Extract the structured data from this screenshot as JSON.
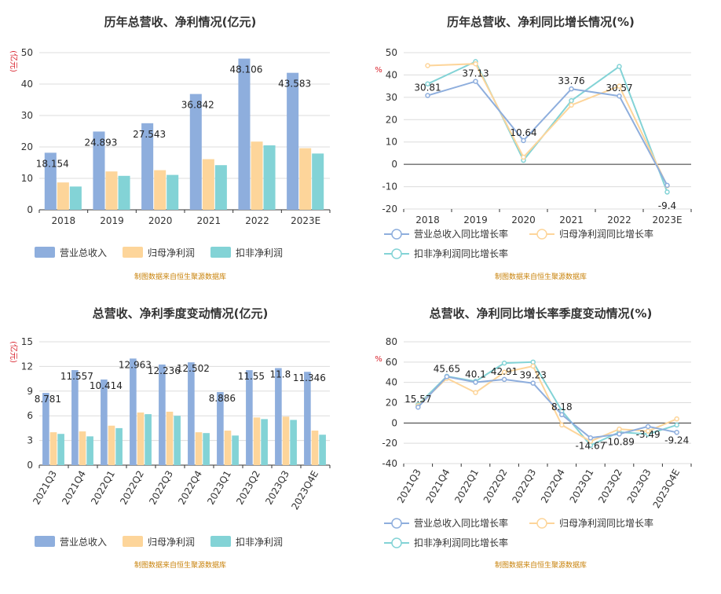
{
  "colors": {
    "revenue": "#8eaedd",
    "net_profit": "#fdd59a",
    "deducted_profit": "#83d3d6"
  },
  "chart_data": [
    {
      "type": "bar",
      "title": "历年总营收、净利情况(亿元)",
      "unit_label": "(亿元)",
      "categories": [
        "2018",
        "2019",
        "2020",
        "2021",
        "2022",
        "2023E"
      ],
      "ylim": [
        0,
        50
      ],
      "yticks": [
        0,
        10,
        20,
        30,
        40,
        50
      ],
      "grid": true,
      "legend": "bottom",
      "series": [
        {
          "name": "营业总收入",
          "values": [
            18.154,
            24.893,
            27.543,
            36.842,
            48.106,
            43.583
          ],
          "labels": [
            "18.154",
            "24.893",
            "27.543",
            "36.842",
            "48.106",
            "43.583"
          ]
        },
        {
          "name": "归母净利润",
          "values": [
            8.7,
            12.2,
            12.6,
            16.1,
            21.7,
            19.6
          ]
        },
        {
          "name": "扣非净利润",
          "values": [
            7.4,
            10.8,
            11.1,
            14.2,
            20.5,
            17.9
          ]
        }
      ],
      "source": "制图数据来自恒生聚源数据库"
    },
    {
      "type": "line",
      "title": "历年总营收、净利同比增长情况(%)",
      "unit_label": "%",
      "categories": [
        "2018",
        "2019",
        "2020",
        "2021",
        "2022",
        "2023E"
      ],
      "ylim": [
        -20,
        50
      ],
      "yticks": [
        -20,
        -10,
        0,
        10,
        20,
        30,
        40,
        50
      ],
      "grid": true,
      "legend": "bottom",
      "series": [
        {
          "name": "营业总收入同比增长率",
          "values": [
            30.81,
            37.13,
            10.64,
            33.76,
            30.57,
            -9.4
          ],
          "labels": [
            "30.81",
            "37.13",
            "10.64",
            "33.76",
            "30.57",
            "-9.4"
          ]
        },
        {
          "name": "归母净利润同比增长率",
          "values": [
            44.2,
            45.0,
            3.2,
            26.5,
            35.0,
            -9.6
          ]
        },
        {
          "name": "扣非净利润同比增长率",
          "values": [
            36.0,
            46.0,
            1.8,
            28.5,
            43.8,
            -12.4
          ]
        }
      ],
      "source": "制图数据来自恒生聚源数据库"
    },
    {
      "type": "bar",
      "title": "总营收、净利季度变动情况(亿元)",
      "unit_label": "(亿元)",
      "categories": [
        "2021Q3",
        "2021Q4",
        "2022Q1",
        "2022Q2",
        "2022Q3",
        "2022Q4",
        "2023Q1",
        "2023Q2",
        "2023Q3",
        "2023Q4E"
      ],
      "ylim": [
        0,
        15
      ],
      "yticks": [
        0,
        3,
        6,
        9,
        12,
        15
      ],
      "grid": true,
      "legend": "bottom",
      "series": [
        {
          "name": "营业总收入",
          "values": [
            8.781,
            11.557,
            10.414,
            12.963,
            12.236,
            12.502,
            8.886,
            11.55,
            11.8,
            11.346
          ],
          "labels": [
            "8.781",
            "11.557",
            "10.414",
            "12.963",
            "12.236",
            "12.502",
            "8.886",
            "11.55",
            "11.8",
            "11.346"
          ]
        },
        {
          "name": "归母净利润",
          "values": [
            4.0,
            4.1,
            4.8,
            6.4,
            6.5,
            4.0,
            4.2,
            5.8,
            5.9,
            4.2
          ]
        },
        {
          "name": "扣非净利润",
          "values": [
            3.8,
            3.5,
            4.5,
            6.2,
            6.0,
            3.9,
            3.6,
            5.6,
            5.5,
            3.7
          ]
        }
      ],
      "source": "制图数据来自恒生聚源数据库"
    },
    {
      "type": "line",
      "title": "总营收、净利同比增长率季度变动情况(%)",
      "unit_label": "%",
      "categories": [
        "2021Q3",
        "2021Q4",
        "2022Q1",
        "2022Q2",
        "2022Q3",
        "2022Q4",
        "2023Q1",
        "2023Q2",
        "2023Q3",
        "2023Q4E"
      ],
      "ylim": [
        -40,
        80
      ],
      "yticks": [
        -40,
        -20,
        0,
        20,
        40,
        60,
        80
      ],
      "grid": true,
      "legend": "bottom",
      "series": [
        {
          "name": "营业总收入同比增长率",
          "values": [
            15.57,
            45.65,
            40.1,
            42.91,
            39.23,
            8.18,
            -14.67,
            -10.89,
            -3.49,
            -9.24
          ],
          "labels": [
            "15.57",
            "45.65",
            "40.1",
            "42.91",
            "39.23",
            "8.18",
            "-14.67",
            "-10.89",
            "-3.49",
            "-9.24"
          ]
        },
        {
          "name": "归母净利润同比增长率",
          "values": [
            17,
            44,
            30,
            50,
            56,
            -2,
            -18,
            -6,
            -8,
            4
          ]
        },
        {
          "name": "扣非净利润同比增长率",
          "values": [
            18,
            46,
            41,
            59,
            60,
            12,
            -22,
            -9,
            -11,
            -2
          ]
        }
      ],
      "source": "制图数据来自恒生聚源数据库"
    }
  ]
}
